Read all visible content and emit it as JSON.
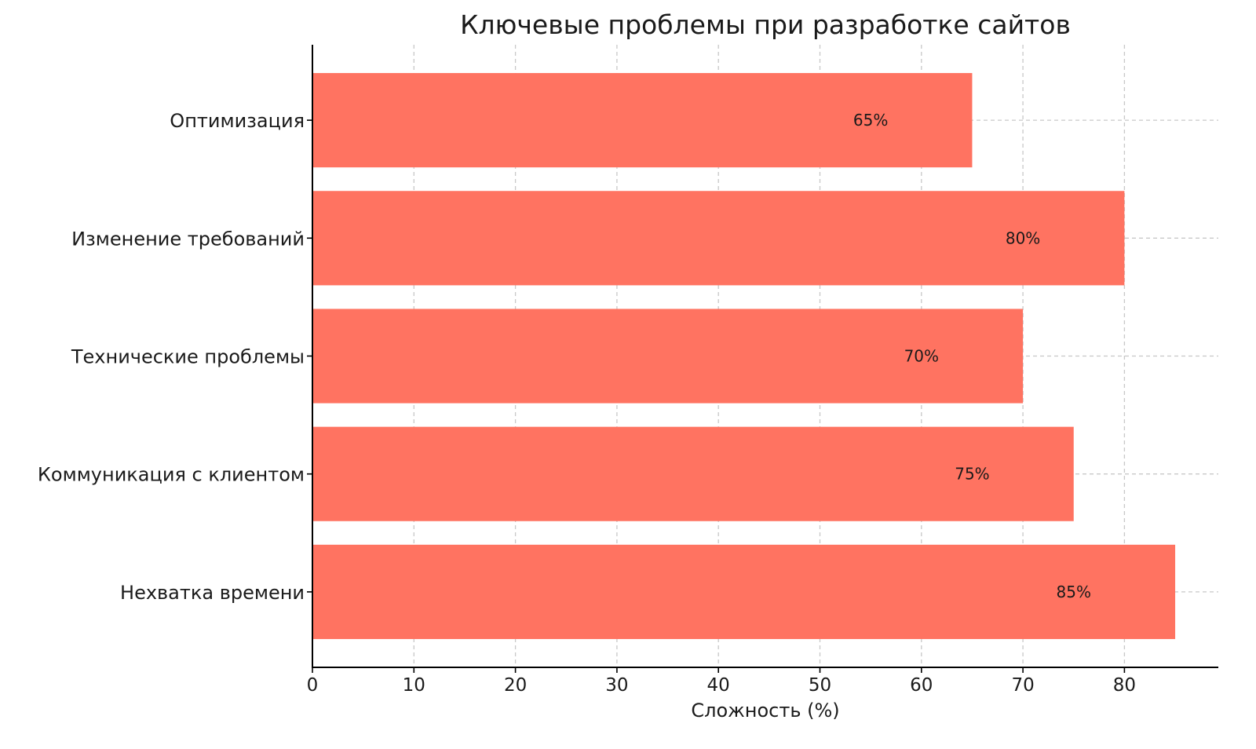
{
  "chart_data": {
    "type": "bar",
    "orientation": "horizontal",
    "title": "Ключевые проблемы при разработке сайтов",
    "xlabel": "Сложность (%)",
    "ylabel": "",
    "categories": [
      "Нехватка времени",
      "Коммуникация с клиентом",
      "Технические проблемы",
      "Изменение требований",
      "Оптимизация"
    ],
    "values": [
      85,
      75,
      70,
      80,
      65
    ],
    "data_labels": [
      "85%",
      "75%",
      "70%",
      "80%",
      "65%"
    ],
    "xlim": [
      0,
      89.25
    ],
    "xticks": [
      0,
      10,
      20,
      30,
      40,
      50,
      60,
      70,
      80
    ],
    "grid": true,
    "bar_color": "#FF7361"
  }
}
